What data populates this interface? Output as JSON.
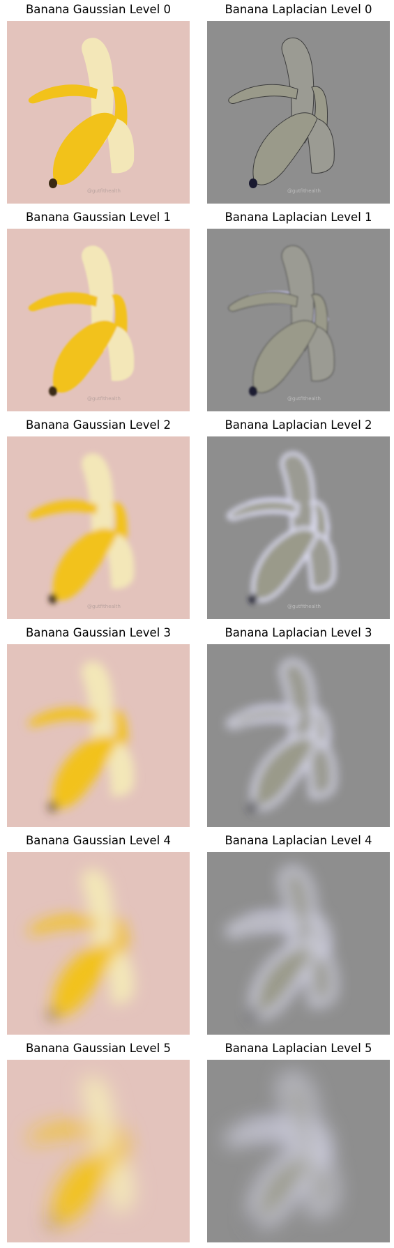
{
  "figure": {
    "rows": [
      {
        "gaussian_title": "Banana Gaussian Level 0",
        "laplacian_title": "Banana Laplacian Level 0",
        "level": 0
      },
      {
        "gaussian_title": "Banana Gaussian Level 1",
        "laplacian_title": "Banana Laplacian Level 1",
        "level": 1
      },
      {
        "gaussian_title": "Banana Gaussian Level 2",
        "laplacian_title": "Banana Laplacian Level 2",
        "level": 2
      },
      {
        "gaussian_title": "Banana Gaussian Level 3",
        "laplacian_title": "Banana Laplacian Level 3",
        "level": 3
      },
      {
        "gaussian_title": "Banana Gaussian Level 4",
        "laplacian_title": "Banana Laplacian Level 4",
        "level": 4
      },
      {
        "gaussian_title": "Banana Gaussian Level 5",
        "laplacian_title": "Banana Laplacian Level 5",
        "level": 5
      }
    ],
    "watermark": "@gutfithealth",
    "colors": {
      "gaussian_bg": "#e3c3bc",
      "laplacian_bg": "#8e8e8e",
      "banana_yellow": "#f2c21a",
      "banana_flesh": "#f3e7b8",
      "banana_tip": "#3a2a14"
    }
  }
}
